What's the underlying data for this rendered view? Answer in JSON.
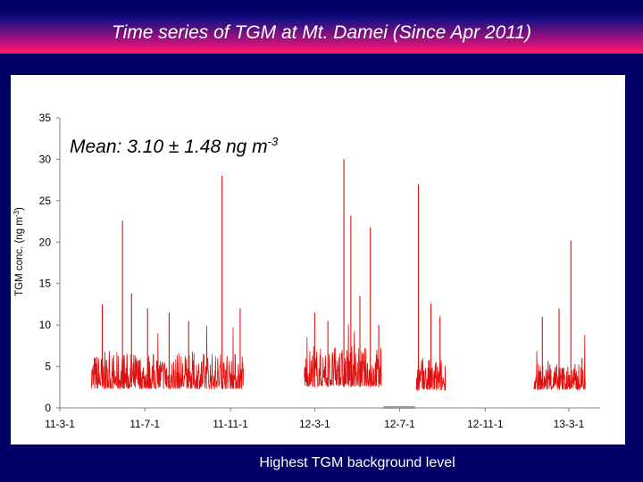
{
  "slide": {
    "title": "Time series of TGM at Mt. Damei (Since Apr 2011)",
    "footer": "Highest TGM background level",
    "colors": {
      "background": "#000066",
      "title_band": "#ff1a6a",
      "series": "#e01010",
      "highlight_bar": "#999999"
    }
  },
  "chart_data": {
    "type": "line",
    "title": "",
    "annotation": {
      "prefix": "Mean: 3.10 ± 1.48 ng m",
      "superscript": "-3"
    },
    "ylabel": "TGM conc. (ng m",
    "ylabel_sup": "-3",
    "ylabel_end": ")",
    "ylim": [
      0,
      35
    ],
    "yticks": [
      0,
      5,
      10,
      15,
      20,
      25,
      30,
      35
    ],
    "xlim": [
      "2011-03-01",
      "2013-04-15"
    ],
    "xticks": [
      {
        "date": "2011-03-01",
        "label": "11-3-1"
      },
      {
        "date": "2011-07-01",
        "label": "11-7-1"
      },
      {
        "date": "2011-11-01",
        "label": "11-11-1"
      },
      {
        "date": "2012-03-01",
        "label": "12-3-1"
      },
      {
        "date": "2012-07-01",
        "label": "12-7-1"
      },
      {
        "date": "2012-11-01",
        "label": "12-11-1"
      },
      {
        "date": "2013-03-01",
        "label": "13-3-1"
      }
    ],
    "grid": false,
    "series": [
      {
        "segments": [
          {
            "start": "2011-04-15",
            "end": "2011-11-20",
            "baseline": 2.3,
            "noise": 4.5
          },
          {
            "start": "2012-02-15",
            "end": "2012-06-05",
            "baseline": 2.6,
            "noise": 4.8
          },
          {
            "start": "2012-07-25",
            "end": "2012-09-05",
            "baseline": 2.1,
            "noise": 4.0
          },
          {
            "start": "2013-01-10",
            "end": "2013-03-25",
            "baseline": 2.2,
            "noise": 3.2
          }
        ],
        "peaks": [
          {
            "date": "2011-05-01",
            "value": 12.5
          },
          {
            "date": "2011-05-30",
            "value": 22.6
          },
          {
            "date": "2011-06-12",
            "value": 13.8
          },
          {
            "date": "2011-07-05",
            "value": 12.0
          },
          {
            "date": "2011-08-05",
            "value": 11.5
          },
          {
            "date": "2011-09-02",
            "value": 10.5
          },
          {
            "date": "2011-10-20",
            "value": 28.0
          },
          {
            "date": "2011-11-15",
            "value": 12.0
          },
          {
            "date": "2012-03-01",
            "value": 11.5
          },
          {
            "date": "2012-03-20",
            "value": 10.5
          },
          {
            "date": "2012-04-12",
            "value": 30.0
          },
          {
            "date": "2012-04-22",
            "value": 23.2
          },
          {
            "date": "2012-05-05",
            "value": 13.5
          },
          {
            "date": "2012-05-20",
            "value": 21.8
          },
          {
            "date": "2012-06-01",
            "value": 10.0
          },
          {
            "date": "2012-07-28",
            "value": 27.0
          },
          {
            "date": "2012-08-15",
            "value": 12.6
          },
          {
            "date": "2012-08-28",
            "value": 11.0
          },
          {
            "date": "2013-01-22",
            "value": 11.0
          },
          {
            "date": "2013-02-15",
            "value": 12.0
          },
          {
            "date": "2013-03-04",
            "value": 20.2
          },
          {
            "date": "2013-03-20",
            "value": 6.0
          }
        ]
      }
    ],
    "highlight_period": {
      "start": "2012-06-08",
      "end": "2012-07-23",
      "value": 0
    }
  }
}
